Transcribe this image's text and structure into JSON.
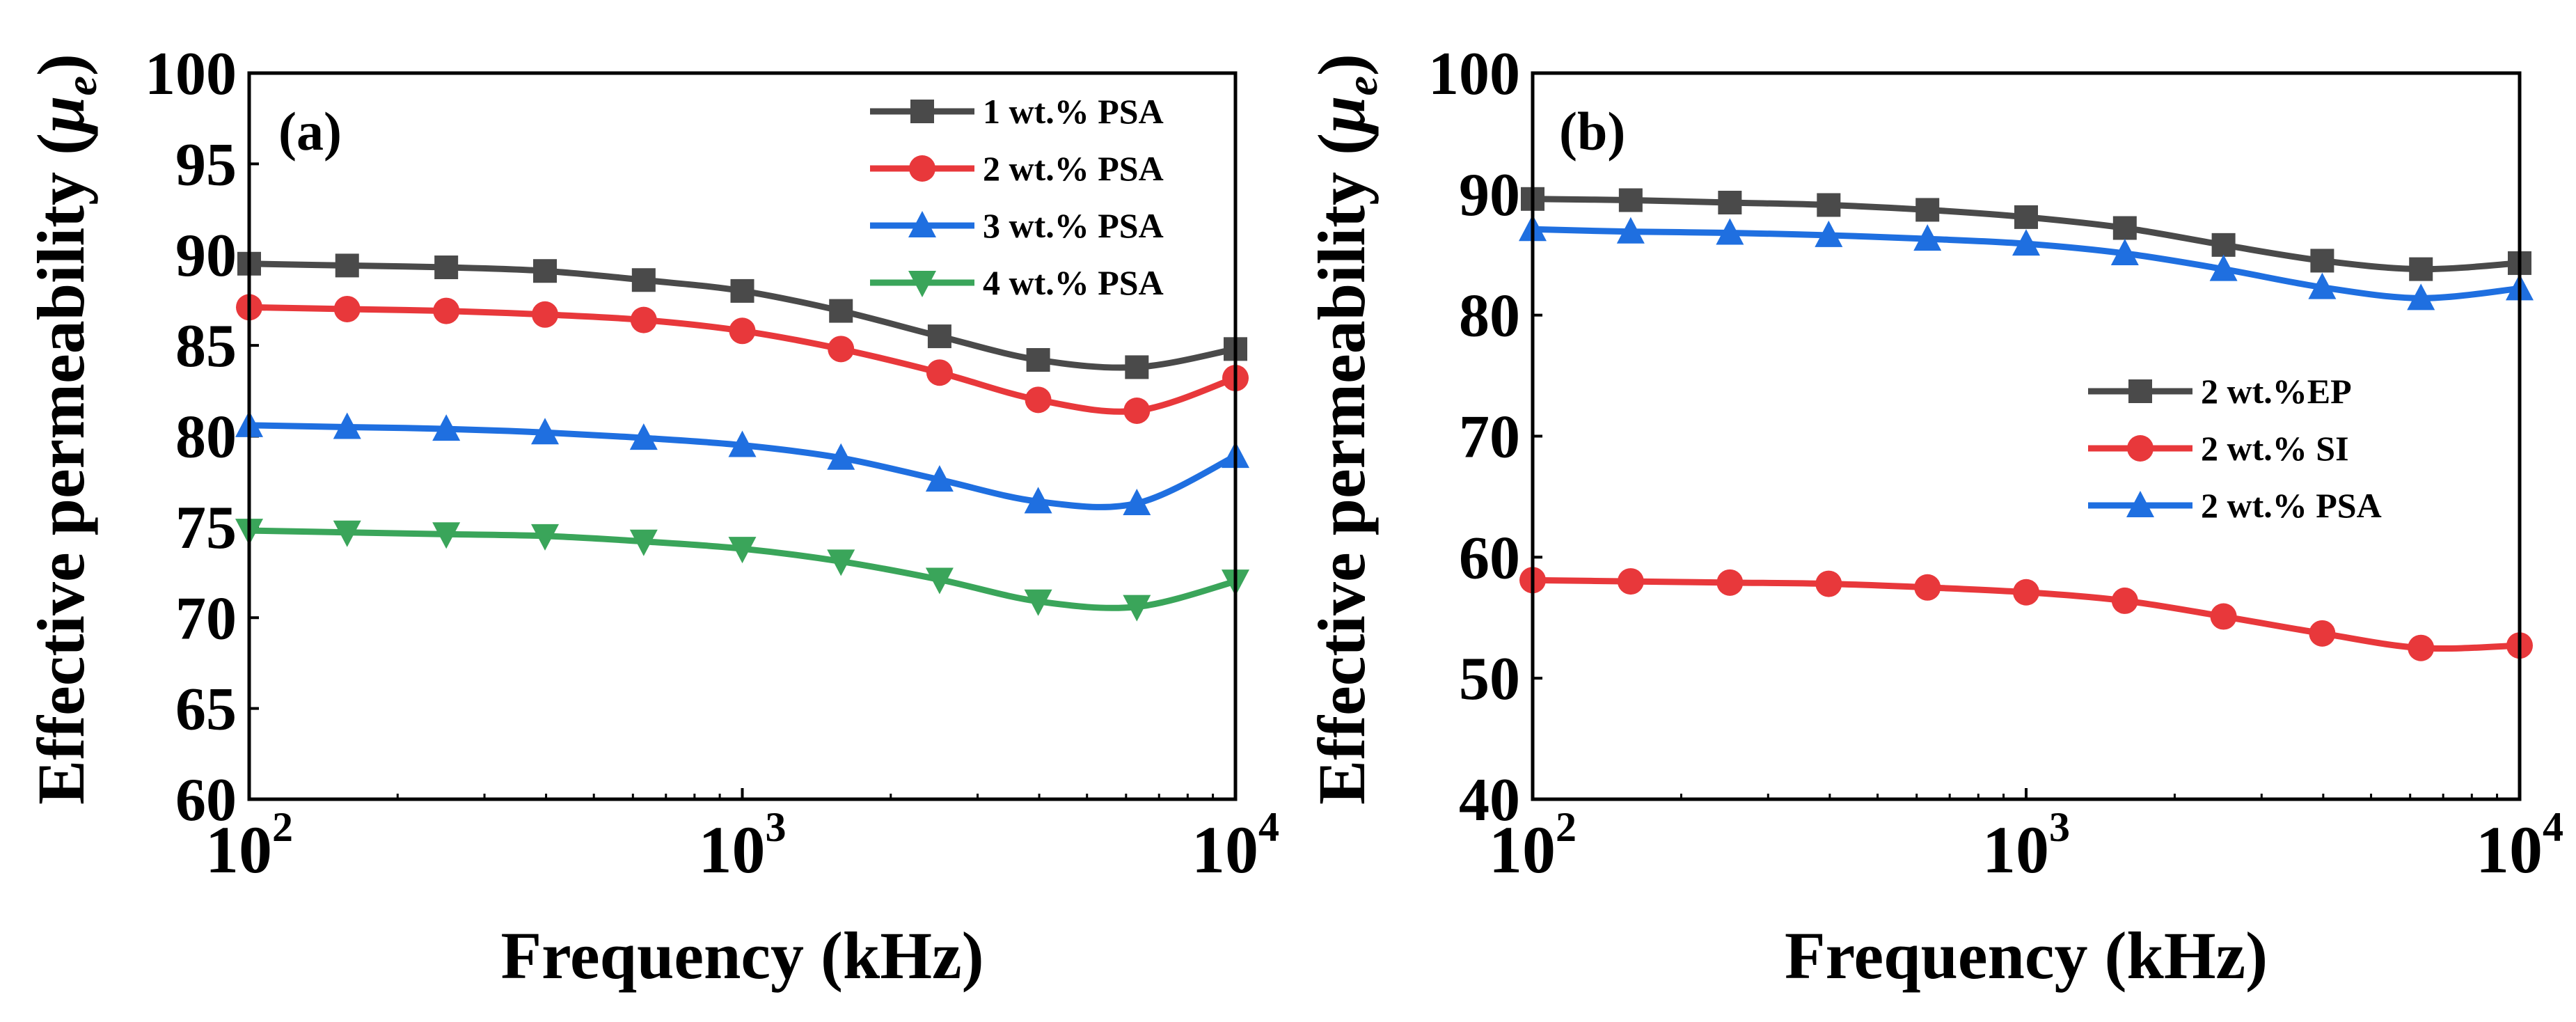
{
  "chart_data": [
    {
      "type": "line",
      "panel_label": "(a)",
      "xlabel": "Frequency (kHz)",
      "ylabel": "Effective permeability (",
      "ylabel_symbol": "μ",
      "ylabel_sub": "e",
      "ylabel_close": ")",
      "xscale": "log",
      "xlim": [
        100,
        10000
      ],
      "ylim": [
        60,
        100
      ],
      "yticks": [
        60,
        65,
        70,
        75,
        80,
        85,
        90,
        95,
        100
      ],
      "xticks": [
        {
          "base": "10",
          "exp": "2",
          "value": 100
        },
        {
          "base": "10",
          "exp": "3",
          "value": 1000
        },
        {
          "base": "10",
          "exp": "4",
          "value": 10000
        }
      ],
      "legend_position": "top-right",
      "x": [
        100,
        158,
        251,
        398,
        631,
        1000,
        1585,
        2512,
        3981,
        6310,
        10000
      ],
      "series": [
        {
          "name": "1 wt.% PSA",
          "color": "#4a4a4a",
          "marker": "square",
          "values": [
            89.5,
            89.4,
            89.3,
            89.1,
            88.6,
            88.0,
            86.9,
            85.5,
            84.2,
            83.8,
            84.8
          ]
        },
        {
          "name": "2 wt.% PSA",
          "color": "#e8383b",
          "marker": "circle",
          "values": [
            87.1,
            87.0,
            86.9,
            86.7,
            86.4,
            85.8,
            84.8,
            83.5,
            82.0,
            81.4,
            83.2
          ]
        },
        {
          "name": "3 wt.% PSA",
          "color": "#1f6fe0",
          "marker": "triangle-up",
          "values": [
            80.6,
            80.5,
            80.4,
            80.2,
            79.9,
            79.5,
            78.8,
            77.6,
            76.4,
            76.3,
            78.9
          ]
        },
        {
          "name": "4 wt.% PSA",
          "color": "#3aa55a",
          "marker": "triangle-down",
          "values": [
            74.8,
            74.7,
            74.6,
            74.5,
            74.2,
            73.8,
            73.1,
            72.1,
            70.9,
            70.6,
            72.0
          ]
        }
      ]
    },
    {
      "type": "line",
      "panel_label": "(b)",
      "xlabel": "Frequency (kHz)",
      "ylabel": "Effective permeability (",
      "ylabel_symbol": "μ",
      "ylabel_sub": "e",
      "ylabel_close": ")",
      "xscale": "log",
      "xlim": [
        100,
        10000
      ],
      "ylim": [
        40,
        100
      ],
      "yticks": [
        40,
        50,
        60,
        70,
        80,
        90,
        100
      ],
      "xticks": [
        {
          "base": "10",
          "exp": "2",
          "value": 100
        },
        {
          "base": "10",
          "exp": "3",
          "value": 1000
        },
        {
          "base": "10",
          "exp": "4",
          "value": 10000
        }
      ],
      "legend_position": "center-right",
      "x": [
        100,
        158,
        251,
        398,
        631,
        1000,
        1585,
        2512,
        3981,
        6310,
        10000
      ],
      "series": [
        {
          "name": "2 wt.%EP",
          "color": "#4a4a4a",
          "marker": "square",
          "values": [
            89.6,
            89.5,
            89.3,
            89.1,
            88.7,
            88.1,
            87.2,
            85.8,
            84.5,
            83.8,
            84.3
          ]
        },
        {
          "name": "2 wt.% SI",
          "color": "#e8383b",
          "marker": "circle",
          "values": [
            58.1,
            58.0,
            57.9,
            57.8,
            57.5,
            57.1,
            56.4,
            55.1,
            53.7,
            52.5,
            52.7
          ]
        },
        {
          "name": "2 wt.% PSA",
          "color": "#1f6fe0",
          "marker": "triangle-up",
          "values": [
            87.1,
            86.9,
            86.8,
            86.6,
            86.3,
            85.9,
            85.1,
            83.8,
            82.3,
            81.4,
            82.2
          ]
        }
      ]
    }
  ]
}
